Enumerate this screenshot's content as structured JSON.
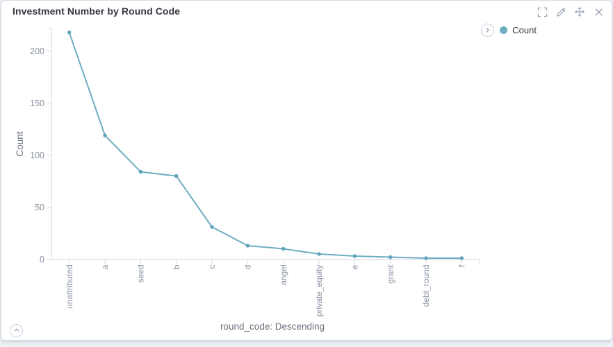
{
  "panel": {
    "title": "Investment Number by Round Code",
    "toolbar_icons": [
      "fullscreen-icon",
      "edit-icon",
      "move-icon",
      "close-icon"
    ],
    "collapse_icon": "chevron-up-circle-icon"
  },
  "legend": {
    "toggle_icon": "chevron-right-circle-icon",
    "items": [
      {
        "label": "Count",
        "color": "#6eadc1"
      }
    ]
  },
  "chart_data": {
    "type": "line",
    "title": "Investment Number by Round Code",
    "xlabel": "round_code: Descending",
    "ylabel": "Count",
    "categories": [
      "unattributed",
      "a",
      "seed",
      "b",
      "c",
      "d",
      "angel",
      "private_equity",
      "e",
      "grant",
      "debt_round",
      "f"
    ],
    "series": [
      {
        "name": "Count",
        "values": [
          218,
          119,
          84,
          80,
          31,
          13,
          10,
          5,
          3,
          2,
          1,
          1
        ]
      }
    ],
    "yticks": [
      0,
      50,
      100,
      150,
      200
    ],
    "ylim": [
      0,
      221.5
    ],
    "grid": false,
    "legend_position": "top-right",
    "line_color": "#6eadc1",
    "marker_color": "#5fa3bd"
  }
}
